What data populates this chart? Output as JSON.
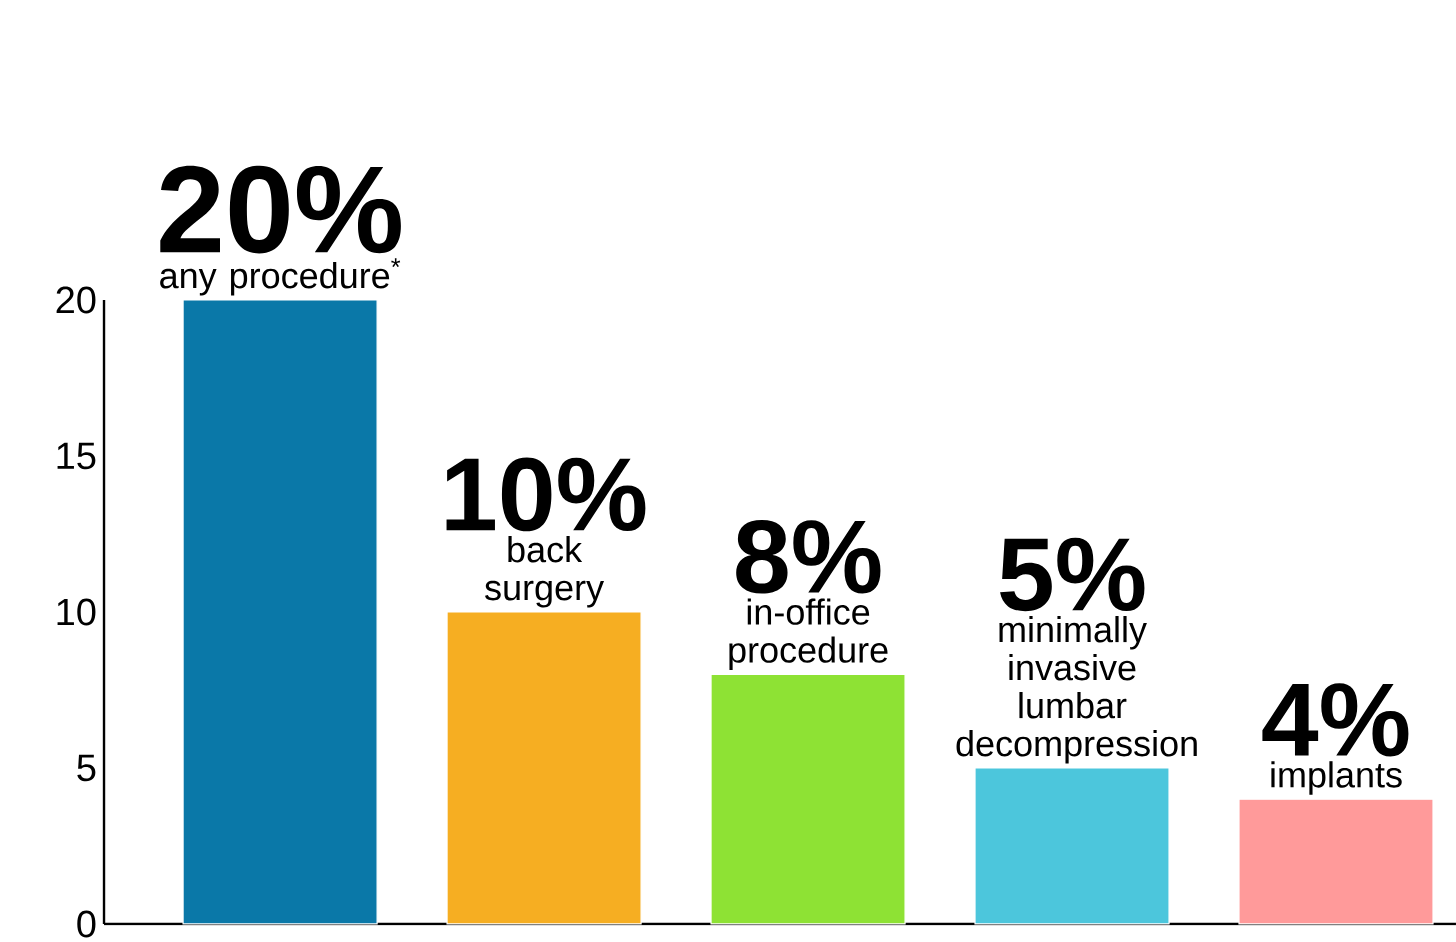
{
  "chart_data": {
    "type": "bar",
    "categories": [
      "any procedure$^{*}$",
      "back surgery",
      "in-office procedure",
      "minimally invasive lumbar decompression",
      "implants"
    ],
    "values": [
      20,
      10,
      8,
      5,
      4
    ],
    "value_labels": [
      "20%",
      "10%",
      "8%",
      "5%",
      "4%"
    ],
    "colors": [
      "#0a78a8",
      "#f6ae22",
      "#8ee234",
      "#4cc6dc",
      "#ff9a9a"
    ],
    "ylim": [
      0,
      20
    ],
    "yticks": [
      0,
      5,
      10,
      15,
      20
    ]
  }
}
